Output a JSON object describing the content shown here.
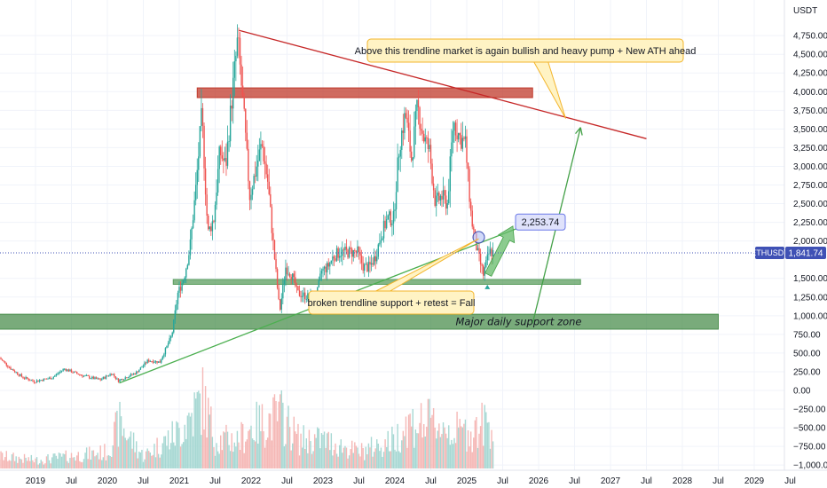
{
  "chart_data": {
    "type": "candlestick",
    "symbol": "ETHUSDT",
    "quote_currency": "USDT",
    "last_price": 1841.74,
    "last_price_label": "1,841.74",
    "ylim": [
      -1000,
      5000
    ],
    "y_ticks": [
      {
        "value": 4750,
        "label": "4,750.00"
      },
      {
        "value": 4500,
        "label": "4,500.00"
      },
      {
        "value": 4250,
        "label": "4,250.00"
      },
      {
        "value": 4000,
        "label": "4,000.00"
      },
      {
        "value": 3750,
        "label": "3,750.00"
      },
      {
        "value": 3500,
        "label": "3,500.00"
      },
      {
        "value": 3250,
        "label": "3,250.00"
      },
      {
        "value": 3000,
        "label": "3,000.00"
      },
      {
        "value": 2750,
        "label": "2,750.00"
      },
      {
        "value": 2500,
        "label": "2,500.00"
      },
      {
        "value": 2250,
        "label": "2,250.00"
      },
      {
        "value": 2000,
        "label": "2,000.00"
      },
      {
        "value": 1500,
        "label": "1,500.00"
      },
      {
        "value": 1250,
        "label": "1,250.00"
      },
      {
        "value": 1000,
        "label": "1,000.00"
      },
      {
        "value": 750,
        "label": "750.00"
      },
      {
        "value": 500,
        "label": "500.00"
      },
      {
        "value": 250,
        "label": "250.00"
      },
      {
        "value": 0,
        "label": "0.00"
      },
      {
        "value": -250,
        "label": "−250.00"
      },
      {
        "value": -500,
        "label": "−500.00"
      },
      {
        "value": -750,
        "label": "−750.00"
      },
      {
        "value": -1000,
        "label": "−1,000.00"
      }
    ],
    "x_ticks": [
      {
        "date": "2019-01",
        "label": "2019"
      },
      {
        "date": "2019-07",
        "label": "Jul"
      },
      {
        "date": "2020-01",
        "label": "2020"
      },
      {
        "date": "2020-07",
        "label": "Jul"
      },
      {
        "date": "2021-01",
        "label": "2021"
      },
      {
        "date": "2021-07",
        "label": "Jul"
      },
      {
        "date": "2022-01",
        "label": "2022"
      },
      {
        "date": "2022-07",
        "label": "Jul"
      },
      {
        "date": "2023-01",
        "label": "2023"
      },
      {
        "date": "2023-07",
        "label": "Jul"
      },
      {
        "date": "2024-01",
        "label": "2024"
      },
      {
        "date": "2024-07",
        "label": "Jul"
      },
      {
        "date": "2025-01",
        "label": "2025"
      },
      {
        "date": "2025-07",
        "label": "Jul"
      },
      {
        "date": "2026-01",
        "label": "2026"
      },
      {
        "date": "2026-07",
        "label": "Jul"
      },
      {
        "date": "2027-01",
        "label": "2027"
      },
      {
        "date": "2027-07",
        "label": "Jul"
      },
      {
        "date": "2028-01",
        "label": "2028"
      },
      {
        "date": "2028-07",
        "label": "Jul"
      },
      {
        "date": "2029-01",
        "label": "2029"
      },
      {
        "date": "2029-07",
        "label": "Jul"
      }
    ],
    "price_path": [
      [
        "2018-07",
        450
      ],
      [
        "2018-09",
        300
      ],
      [
        "2018-11",
        180
      ],
      [
        "2019-01",
        120
      ],
      [
        "2019-04",
        170
      ],
      [
        "2019-06",
        290
      ],
      [
        "2019-07",
        260
      ],
      [
        "2019-09",
        200
      ],
      [
        "2019-12",
        140
      ],
      [
        "2020-02",
        230
      ],
      [
        "2020-03",
        130
      ],
      [
        "2020-06",
        235
      ],
      [
        "2020-08",
        400
      ],
      [
        "2020-10",
        380
      ],
      [
        "2020-12",
        740
      ],
      [
        "2021-01",
        1300
      ],
      [
        "2021-02",
        1500
      ],
      [
        "2021-03",
        1900
      ],
      [
        "2021-04",
        2700
      ],
      [
        "2021-05",
        3700
      ],
      [
        "2021-06",
        2100
      ],
      [
        "2021-07",
        2300
      ],
      [
        "2021-08",
        3200
      ],
      [
        "2021-09",
        3000
      ],
      [
        "2021-10",
        3900
      ],
      [
        "2021-11",
        4700
      ],
      [
        "2021-12",
        3700
      ],
      [
        "2022-01",
        2600
      ],
      [
        "2022-03",
        3300
      ],
      [
        "2022-04",
        2800
      ],
      [
        "2022-05",
        1900
      ],
      [
        "2022-06",
        1050
      ],
      [
        "2022-07",
        1650
      ],
      [
        "2022-08",
        1550
      ],
      [
        "2022-09",
        1300
      ],
      [
        "2022-11",
        1250
      ],
      [
        "2022-12",
        1200
      ],
      [
        "2023-01",
        1600
      ],
      [
        "2023-02",
        1650
      ],
      [
        "2023-03",
        1800
      ],
      [
        "2023-04",
        1850
      ],
      [
        "2023-05",
        1850
      ],
      [
        "2023-06",
        1850
      ],
      [
        "2023-07",
        1850
      ],
      [
        "2023-08",
        1650
      ],
      [
        "2023-09",
        1650
      ],
      [
        "2023-10",
        1800
      ],
      [
        "2023-11",
        2100
      ],
      [
        "2023-12",
        2300
      ],
      [
        "2024-01",
        2300
      ],
      [
        "2024-02",
        3300
      ],
      [
        "2024-03",
        3700
      ],
      [
        "2024-04",
        3100
      ],
      [
        "2024-05",
        3800
      ],
      [
        "2024-06",
        3400
      ],
      [
        "2024-07",
        3200
      ],
      [
        "2024-08",
        2500
      ],
      [
        "2024-09",
        2600
      ],
      [
        "2024-10",
        2500
      ],
      [
        "2024-11",
        3600
      ],
      [
        "2024-12",
        3400
      ],
      [
        "2025-01",
        3300
      ],
      [
        "2025-02",
        2300
      ],
      [
        "2025-03",
        1850
      ],
      [
        "2025-04",
        1550
      ],
      [
        "2025-05",
        1850
      ]
    ],
    "volume_path": [
      [
        "2018-07",
        0.15
      ],
      [
        "2019-01",
        0.1
      ],
      [
        "2019-07",
        0.15
      ],
      [
        "2020-01",
        0.2
      ],
      [
        "2020-03",
        0.55
      ],
      [
        "2020-07",
        0.15
      ],
      [
        "2021-01",
        0.45
      ],
      [
        "2021-05",
        0.85
      ],
      [
        "2021-07",
        0.35
      ],
      [
        "2021-11",
        0.35
      ],
      [
        "2022-01",
        0.5
      ],
      [
        "2022-06",
        0.65
      ],
      [
        "2022-09",
        0.35
      ],
      [
        "2023-01",
        0.35
      ],
      [
        "2023-07",
        0.2
      ],
      [
        "2024-01",
        0.35
      ],
      [
        "2024-03",
        0.55
      ],
      [
        "2024-08",
        0.55
      ],
      [
        "2024-11",
        0.45
      ],
      [
        "2025-02",
        0.45
      ],
      [
        "2025-04",
        0.55
      ]
    ],
    "zones": [
      {
        "name": "resistance-zone",
        "from": "2021-04",
        "to": "2025-12",
        "low": 3920,
        "high": 4050,
        "color": "#c0392b"
      },
      {
        "name": "support-level-zone",
        "from": "2020-12",
        "to": "2026-08",
        "low": 1420,
        "high": 1485,
        "color": "#5c9e5f"
      },
      {
        "name": "major-support-zone",
        "from": "2018-07",
        "to": "2028-07",
        "low": 820,
        "high": 1020,
        "color": "#4c8f4f",
        "label": "Major daily support zone"
      }
    ],
    "trendlines": [
      {
        "name": "descending-resistance-trendline",
        "from": [
          "2021-11",
          4820
        ],
        "to": [
          "2027-07",
          3370
        ],
        "color": "#c62828"
      },
      {
        "name": "rising-support-trendline",
        "from": [
          "2020-03",
          100
        ],
        "to": [
          "2026-01",
          2280
        ],
        "color": "#4caf50"
      }
    ],
    "projections": [
      {
        "name": "projection-arrow-long",
        "from": [
          "2025-12",
          900
        ],
        "to": [
          "2026-08",
          3520
        ],
        "color": "#43a047"
      }
    ],
    "annotations": [
      {
        "name": "bullish-callout",
        "text": "Above this trendline market is again bullish and heavy pump + New ATH ahead",
        "color": "#fff3c4",
        "border": "#f3b52c"
      },
      {
        "name": "breakdown-callout",
        "text": "broken trendline support + retest = Fall",
        "color": "#fff3c4",
        "border": "#f3b52c"
      },
      {
        "name": "target-price-label",
        "value": 2253.74,
        "text": "2,253.74",
        "color": "#dfe2fb",
        "border": "#6b79e8"
      }
    ],
    "colors": {
      "up": "#26a69a",
      "down": "#ef5350",
      "volume_up": "#a7d8d3",
      "volume_down": "#f5b8b6",
      "last_price_line": "#3f51b5",
      "ticker_tag": "#3f51b5"
    }
  }
}
